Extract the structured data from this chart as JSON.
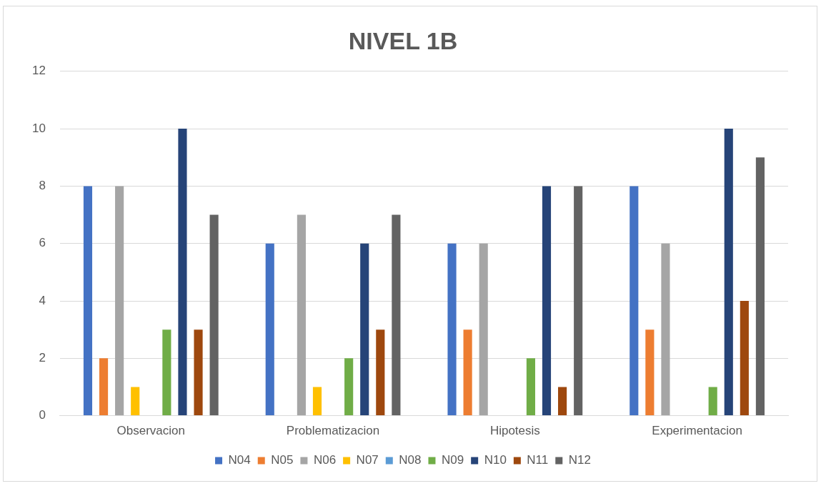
{
  "chart_data": {
    "type": "bar",
    "title": "NIVEL 1B",
    "categories": [
      "Observacion",
      "Problematizacion",
      "Hipotesis",
      "Experimentacion"
    ],
    "series": [
      {
        "name": "N04",
        "color": "#4472c4",
        "values": [
          8,
          6,
          6,
          8
        ]
      },
      {
        "name": "N05",
        "color": "#ed7d31",
        "values": [
          2,
          0,
          3,
          3
        ]
      },
      {
        "name": "N06",
        "color": "#a5a5a5",
        "values": [
          8,
          7,
          6,
          6
        ]
      },
      {
        "name": "N07",
        "color": "#ffc000",
        "values": [
          1,
          1,
          0,
          0
        ]
      },
      {
        "name": "N08",
        "color": "#5b9bd5",
        "values": [
          0,
          0,
          0,
          0
        ]
      },
      {
        "name": "N09",
        "color": "#70ad47",
        "values": [
          3,
          2,
          2,
          1
        ]
      },
      {
        "name": "N10",
        "color": "#264478",
        "values": [
          10,
          6,
          8,
          10
        ]
      },
      {
        "name": "N11",
        "color": "#9e480e",
        "values": [
          3,
          3,
          1,
          4
        ]
      },
      {
        "name": "N12",
        "color": "#636363",
        "values": [
          7,
          7,
          8,
          9
        ]
      }
    ],
    "ylim": [
      0,
      12
    ],
    "yticks": [
      0,
      2,
      4,
      6,
      8,
      10,
      12
    ],
    "grid": "y",
    "legend": "bottom"
  }
}
